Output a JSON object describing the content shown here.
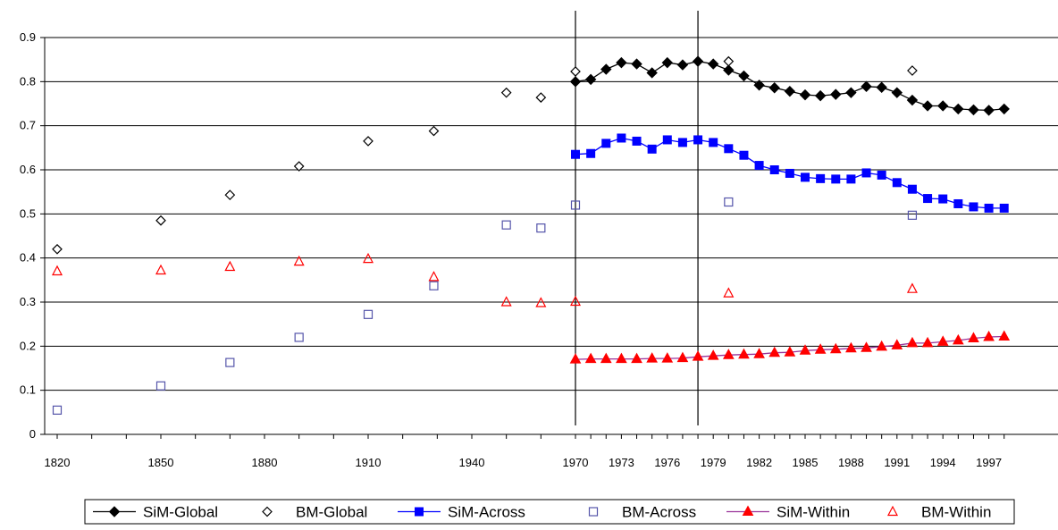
{
  "chart_data": {
    "type": "scatter",
    "title": "",
    "xlabel": "",
    "ylabel": "",
    "ylim": [
      0,
      0.9
    ],
    "yticks": [
      "0",
      "0.1",
      "0.2",
      "0.3",
      "0.4",
      "0.5",
      "0.6",
      "0.7",
      "0.8",
      "0.9"
    ],
    "grid": "horizontal",
    "legend_position": "bottom",
    "x_tick_labels": [
      "1820",
      "1850",
      "1880",
      "1910",
      "1940",
      "1970",
      "1973",
      "1976",
      "1979",
      "1982",
      "1985",
      "1988",
      "1991",
      "1994",
      "1997"
    ],
    "vertical_reference_lines": [
      1970,
      1978
    ],
    "series": [
      {
        "name": "SiM-Global",
        "style": "line-diamond",
        "color": "#000000",
        "x": [
          1970,
          1971,
          1972,
          1973,
          1974,
          1975,
          1976,
          1977,
          1978,
          1979,
          1980,
          1981,
          1982,
          1983,
          1984,
          1985,
          1986,
          1987,
          1988,
          1989,
          1990,
          1991,
          1992,
          1993,
          1994,
          1995,
          1996,
          1997,
          1998
        ],
        "values": [
          0.8,
          0.805,
          0.828,
          0.843,
          0.84,
          0.82,
          0.843,
          0.838,
          0.846,
          0.84,
          0.826,
          0.813,
          0.792,
          0.786,
          0.778,
          0.77,
          0.768,
          0.771,
          0.775,
          0.789,
          0.787,
          0.775,
          0.758,
          0.745,
          0.745,
          0.738,
          0.736,
          0.735,
          0.738
        ]
      },
      {
        "name": "BM-Global",
        "style": "open-diamond",
        "color": "#000000",
        "x": [
          1820,
          1850,
          1870,
          1890,
          1910,
          1929,
          1950,
          1960,
          1970,
          1980,
          1992
        ],
        "values": [
          0.42,
          0.485,
          0.543,
          0.608,
          0.665,
          0.688,
          0.775,
          0.764,
          0.823,
          0.846,
          0.825
        ]
      },
      {
        "name": "SiM-Across",
        "style": "line-square",
        "color": "#0000ff",
        "x": [
          1970,
          1971,
          1972,
          1973,
          1974,
          1975,
          1976,
          1977,
          1978,
          1979,
          1980,
          1981,
          1982,
          1983,
          1984,
          1985,
          1986,
          1987,
          1988,
          1989,
          1990,
          1991,
          1992,
          1993,
          1994,
          1995,
          1996,
          1997,
          1998
        ],
        "values": [
          0.635,
          0.637,
          0.66,
          0.672,
          0.665,
          0.647,
          0.668,
          0.662,
          0.668,
          0.662,
          0.648,
          0.633,
          0.61,
          0.6,
          0.592,
          0.583,
          0.58,
          0.579,
          0.579,
          0.593,
          0.588,
          0.571,
          0.556,
          0.535,
          0.534,
          0.523,
          0.516,
          0.513,
          0.513
        ]
      },
      {
        "name": "BM-Across",
        "style": "open-square",
        "color": "#5555aa",
        "x": [
          1820,
          1850,
          1870,
          1890,
          1910,
          1929,
          1950,
          1960,
          1970,
          1980,
          1992
        ],
        "values": [
          0.055,
          0.11,
          0.163,
          0.22,
          0.272,
          0.337,
          0.475,
          0.468,
          0.52,
          0.527,
          0.497
        ]
      },
      {
        "name": "SiM-Within",
        "style": "line-triangle",
        "color": "#ff0000",
        "line_color": "#993399",
        "x": [
          1970,
          1971,
          1972,
          1973,
          1974,
          1975,
          1976,
          1977,
          1978,
          1979,
          1980,
          1981,
          1982,
          1983,
          1984,
          1985,
          1986,
          1987,
          1988,
          1989,
          1990,
          1991,
          1992,
          1993,
          1994,
          1995,
          1996,
          1997,
          1998
        ],
        "values": [
          0.17,
          0.171,
          0.171,
          0.171,
          0.171,
          0.172,
          0.172,
          0.173,
          0.176,
          0.178,
          0.18,
          0.181,
          0.182,
          0.185,
          0.186,
          0.19,
          0.192,
          0.193,
          0.195,
          0.196,
          0.199,
          0.202,
          0.207,
          0.207,
          0.21,
          0.213,
          0.218,
          0.221,
          0.222
        ]
      },
      {
        "name": "BM-Within",
        "style": "open-triangle",
        "color": "#ff0000",
        "x": [
          1820,
          1850,
          1870,
          1890,
          1910,
          1929,
          1950,
          1960,
          1970,
          1980,
          1992
        ],
        "values": [
          0.37,
          0.372,
          0.38,
          0.392,
          0.398,
          0.357,
          0.3,
          0.298,
          0.301,
          0.32,
          0.33
        ]
      }
    ]
  }
}
